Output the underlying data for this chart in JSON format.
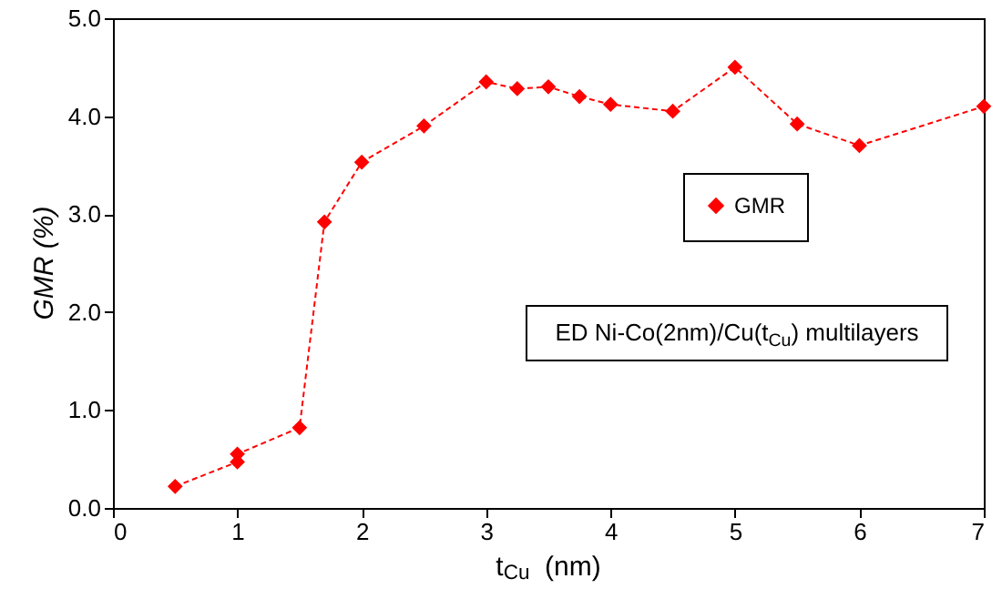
{
  "chart_data": {
    "type": "line",
    "xlabel": "t$_{Cu}$  (nm)",
    "ylabel": "GMR  (%)",
    "x": [
      0.5,
      1.0,
      1.0,
      1.5,
      1.7,
      2.0,
      2.5,
      3.0,
      3.25,
      3.5,
      3.75,
      4.0,
      4.5,
      5.0,
      5.5,
      6.0,
      7.0
    ],
    "series": [
      {
        "name": "GMR",
        "color": "#ff0000",
        "values": [
          0.22,
          0.47,
          0.55,
          0.82,
          2.92,
          3.53,
          3.9,
          4.35,
          4.28,
          4.3,
          4.2,
          4.12,
          4.05,
          4.5,
          3.92,
          3.7,
          4.1
        ]
      }
    ],
    "xlim": [
      0,
      7
    ],
    "xticks": [
      0,
      1,
      2,
      3,
      4,
      5,
      6,
      7
    ],
    "ylim": [
      0,
      5
    ],
    "yticks": [
      {
        "value": 0,
        "label": "0.0"
      },
      {
        "value": 1,
        "label": "1.0"
      },
      {
        "value": 2,
        "label": "2.0"
      },
      {
        "value": 3,
        "label": "3.0"
      },
      {
        "value": 4,
        "label": "4.0"
      },
      {
        "value": 5,
        "label": "5.0"
      }
    ],
    "annotations": [
      "ED Ni-Co(2nm)/Cu(t$_{Cu}$) multilayers"
    ],
    "marker": "diamond",
    "line_style": "dashed",
    "grid": false,
    "legend": "right"
  }
}
